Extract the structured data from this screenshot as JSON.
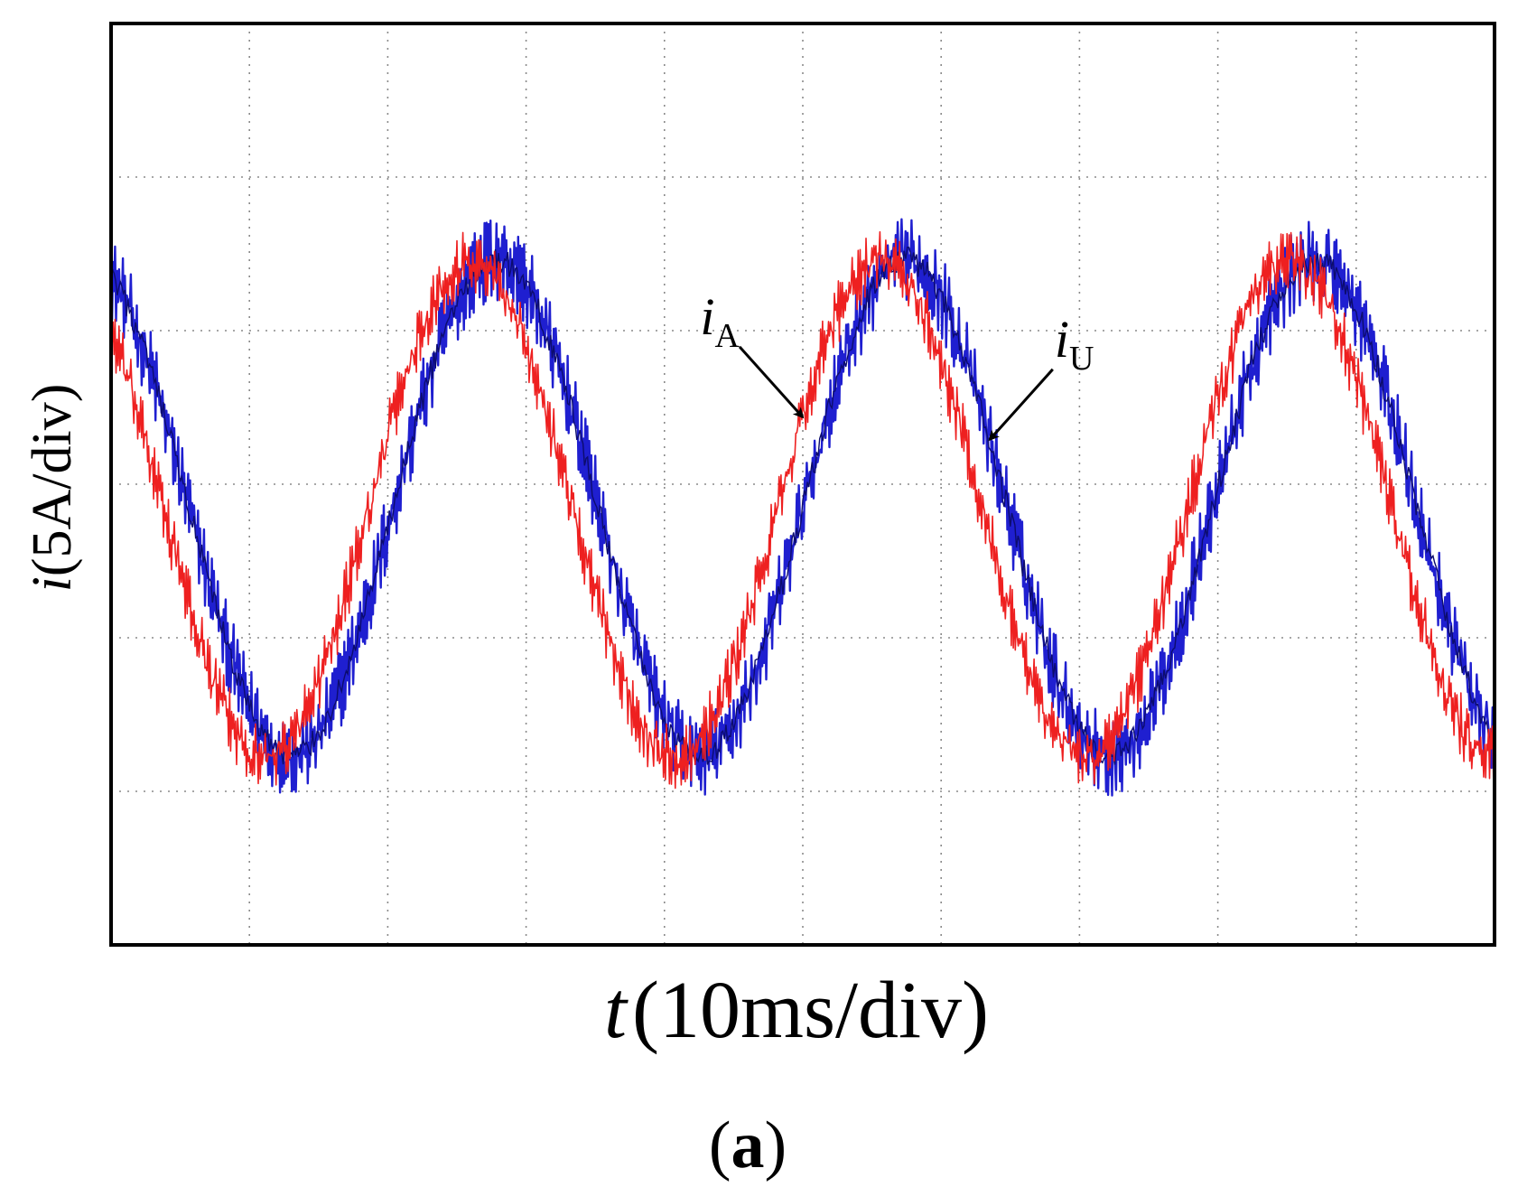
{
  "chart_data": {
    "type": "line",
    "title": "",
    "panel_label": {
      "open": "(",
      "letter": "a",
      "close": ")"
    },
    "xlabel": {
      "symbol": "t",
      "unit": "(10ms/div)"
    },
    "ylabel": {
      "symbol": "i",
      "unit": "(5A/div)"
    },
    "xlim": [
      0,
      10
    ],
    "ylim": [
      -4,
      4
    ],
    "x_divisions": 10,
    "y_divisions": 6,
    "grid": true,
    "grid_style": "dotted",
    "legend": "none",
    "series": [
      {
        "name": "iU",
        "label_symbol": "i",
        "label_subscript": "U",
        "color": "#1f1fd0",
        "amplitude": 2.15,
        "offset": -0.2,
        "period_div": 2.96,
        "peak_x": 2.78,
        "noise": 0.22,
        "band": 0.14
      },
      {
        "name": "iA",
        "label_symbol": "i",
        "label_subscript": "A",
        "color": "#ee2020",
        "amplitude": 2.15,
        "offset": -0.22,
        "period_div": 2.96,
        "peak_x": 2.6,
        "noise": 0.18,
        "band": 0.1
      }
    ],
    "annotations": [
      {
        "series": "iA",
        "text_symbol": "i",
        "text_subscript": "A",
        "target_x": 5.0,
        "side": "left"
      },
      {
        "series": "iU",
        "text_symbol": "i",
        "text_subscript": "U",
        "target_x": 6.35,
        "side": "right"
      }
    ]
  }
}
